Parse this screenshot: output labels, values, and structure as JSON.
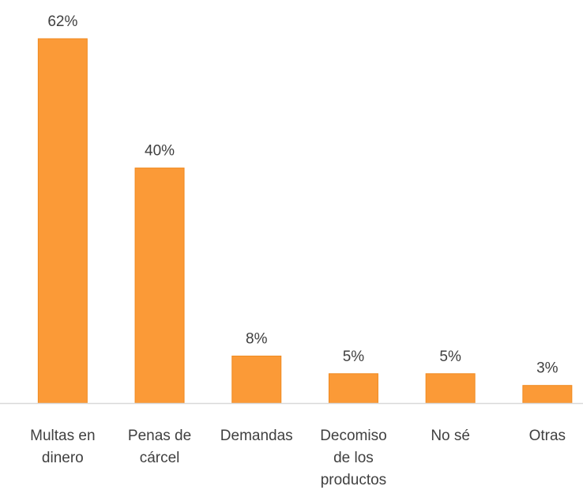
{
  "chart_data": {
    "type": "bar",
    "categories": [
      "Multas en\ndinero",
      "Penas de\ncárcel",
      "Demandas",
      "Decomiso\nde los\nproductos",
      "No sé",
      "Otras"
    ],
    "values": [
      62,
      40,
      8,
      5,
      5,
      3
    ],
    "value_labels": [
      "62%",
      "40%",
      "8%",
      "5%",
      "5%",
      "3%"
    ],
    "color": "#fb9a37"
  }
}
